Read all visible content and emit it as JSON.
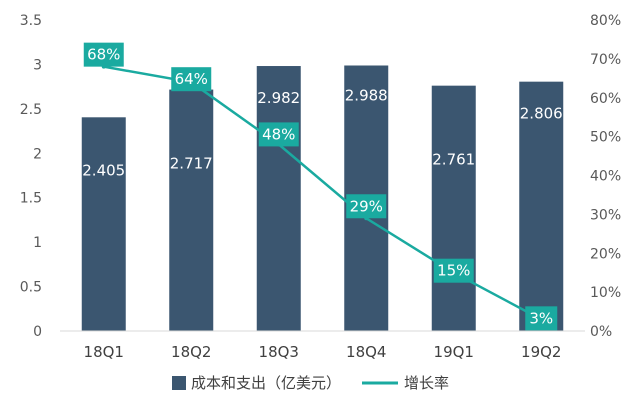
{
  "chart_data": {
    "type": "bar",
    "categories": [
      "18Q1",
      "18Q2",
      "18Q3",
      "18Q4",
      "19Q1",
      "19Q2"
    ],
    "series": [
      {
        "name": "成本和支出（亿美元）",
        "type": "bar",
        "axis": "left",
        "values": [
          2.405,
          2.717,
          2.982,
          2.988,
          2.761,
          2.806
        ],
        "labels": [
          "2.405",
          "2.717",
          "2.982",
          "2.988",
          "2.761",
          "2.806"
        ],
        "color": "#3b5670"
      },
      {
        "name": "增长率",
        "type": "line",
        "axis": "right",
        "values": [
          68,
          64,
          48,
          29,
          15,
          3
        ],
        "labels": [
          "68%",
          "64%",
          "48%",
          "29%",
          "15%",
          "3%"
        ],
        "color": "#1aaaa0"
      }
    ],
    "left_axis": {
      "ylim": [
        0,
        3.5
      ],
      "ticks": [
        "0",
        "0.5",
        "1",
        "1.5",
        "2",
        "2.5",
        "3",
        "3.5"
      ]
    },
    "right_axis": {
      "ylim": [
        0,
        80
      ],
      "ticks": [
        "0%",
        "10%",
        "20%",
        "30%",
        "40%",
        "50%",
        "60%",
        "70%",
        "80%"
      ]
    },
    "title": "",
    "xlabel": "",
    "ylabel": "",
    "grid": false,
    "legend": "bottom-center"
  }
}
